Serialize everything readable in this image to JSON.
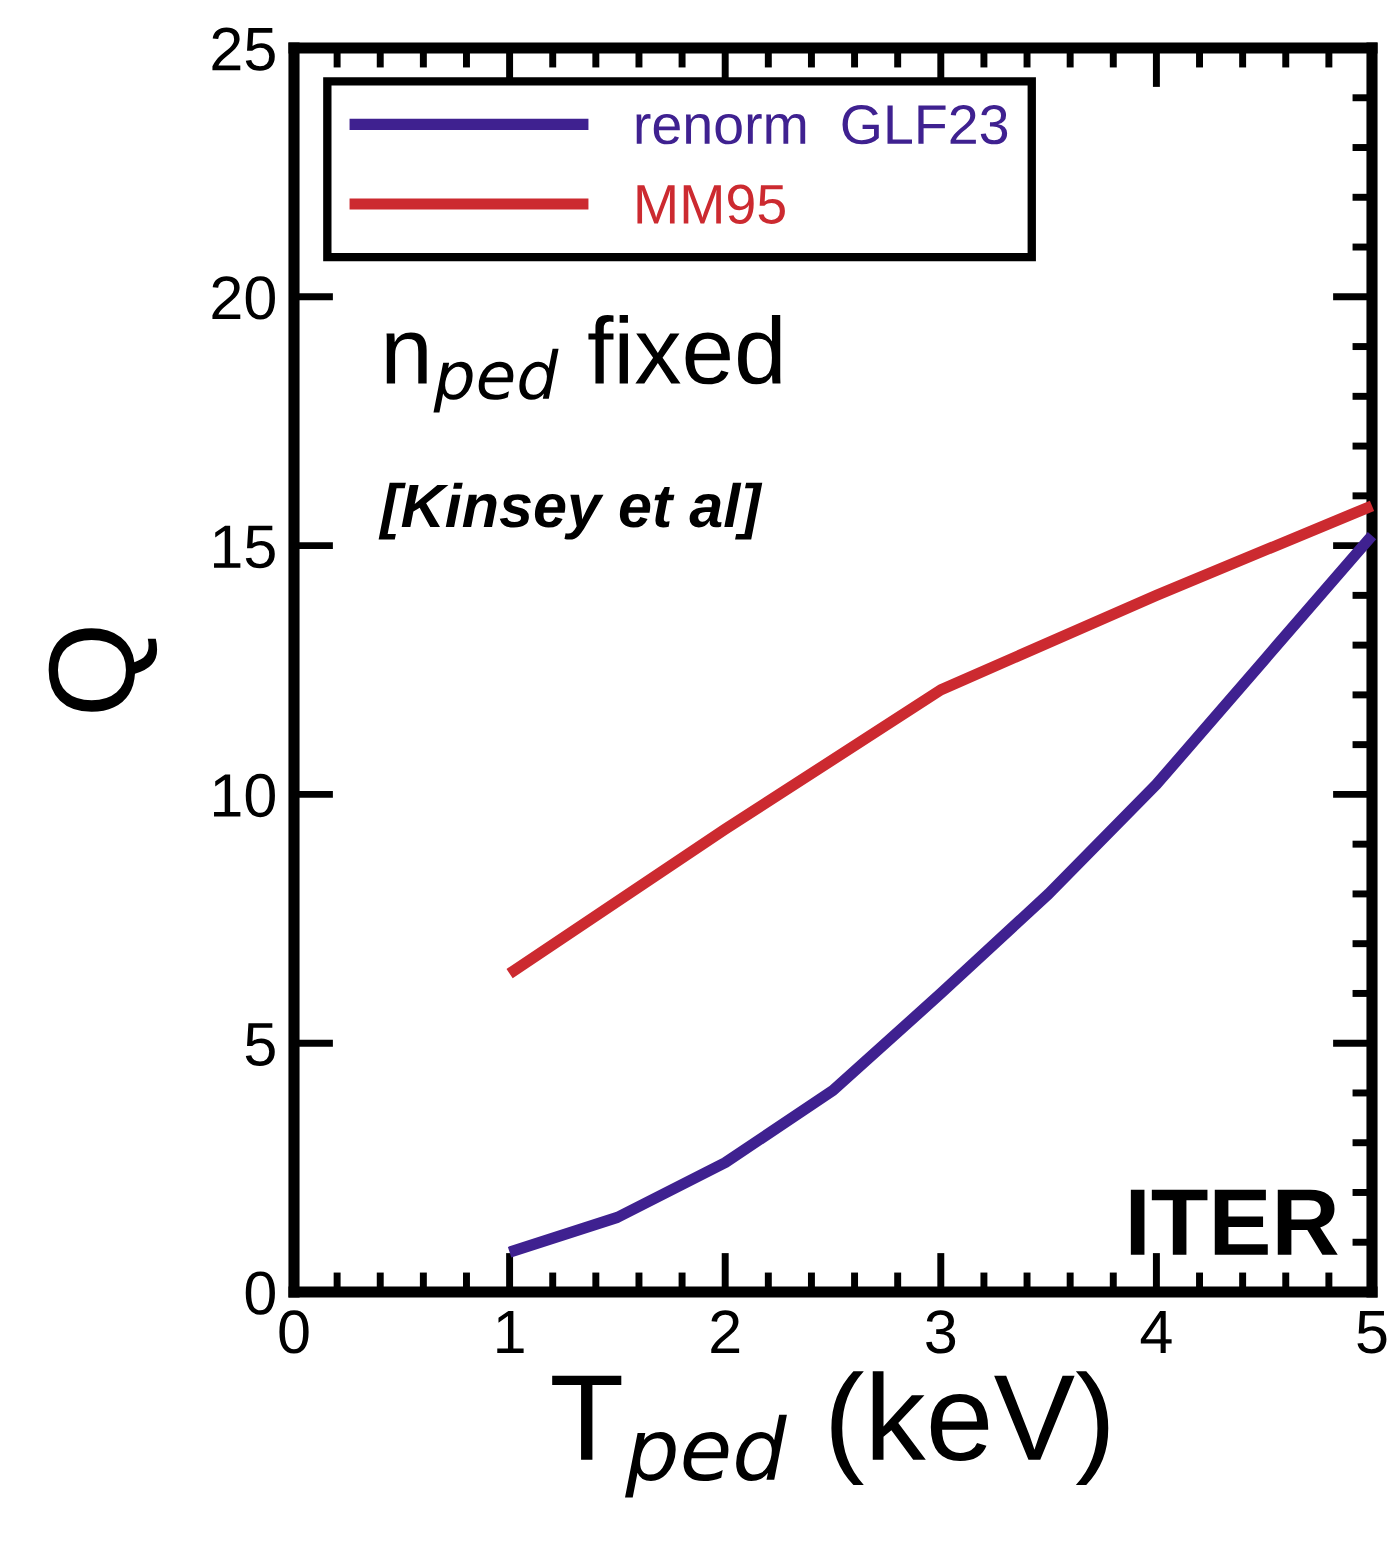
{
  "chart_data": {
    "type": "line",
    "xlabel": "T$_{ped}$ (keV)",
    "ylabel": "Q",
    "xlim": [
      0,
      5
    ],
    "ylim": [
      0,
      25
    ],
    "xticks": [
      0,
      1,
      2,
      3,
      4,
      5
    ],
    "yticks": [
      0,
      5,
      10,
      15,
      20,
      25
    ],
    "grid": false,
    "legend": "top left",
    "line_style": "solid",
    "marker": "none",
    "series": [
      {
        "name": "renorm  GLF23",
        "color": "#3f2190",
        "x": [
          1,
          1.5,
          2,
          2.5,
          3,
          3.5,
          4,
          4.5,
          5
        ],
        "values": [
          0.8,
          1.5,
          2.6,
          4.05,
          6.0,
          8.0,
          10.2,
          12.7,
          15.2
        ]
      },
      {
        "name": "MM95",
        "color": "#cc2a30",
        "x": [
          1,
          2,
          3,
          4,
          5
        ],
        "values": [
          6.4,
          9.3,
          12.1,
          14.0,
          15.8
        ]
      }
    ],
    "annotations": [
      "n$_{ped}$ fixed",
      "[Kinsey et al]",
      "ITER"
    ]
  }
}
